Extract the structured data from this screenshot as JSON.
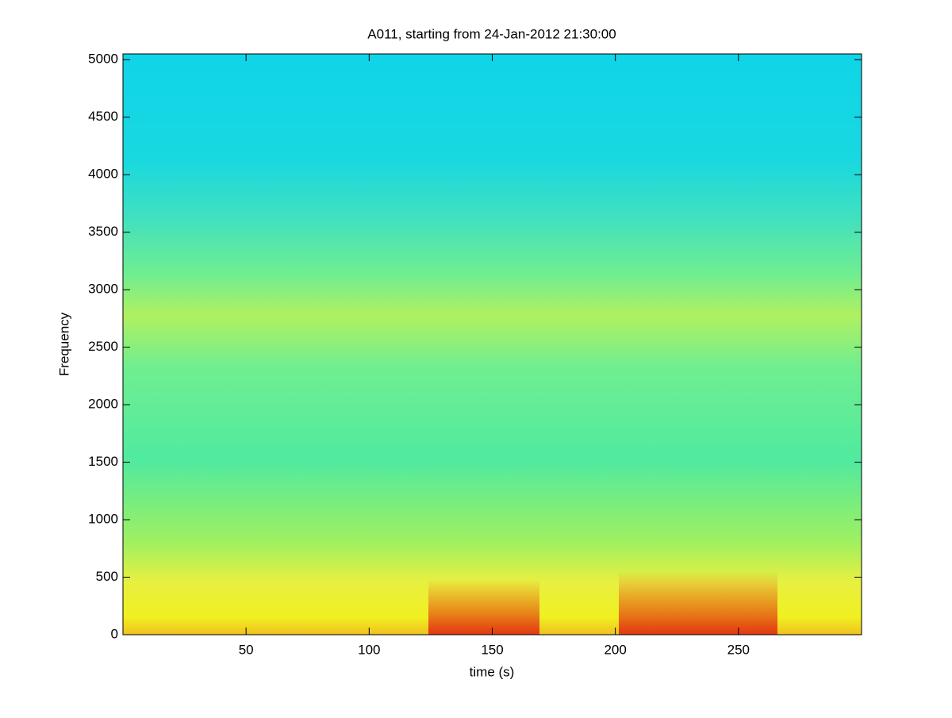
{
  "chart_data": {
    "type": "spectrogram",
    "title": "A011, starting from 24-Jan-2012 21:30:00",
    "x_label": "time (s)",
    "y_label": "Frequency",
    "xlim": [
      0,
      300
    ],
    "ylim": [
      0,
      5050
    ],
    "xticks": [
      50,
      100,
      150,
      200,
      250
    ],
    "yticks": [
      0,
      500,
      1000,
      1500,
      2000,
      2500,
      3000,
      3500,
      4000,
      4500,
      5000
    ],
    "colormap": "jet"
  }
}
